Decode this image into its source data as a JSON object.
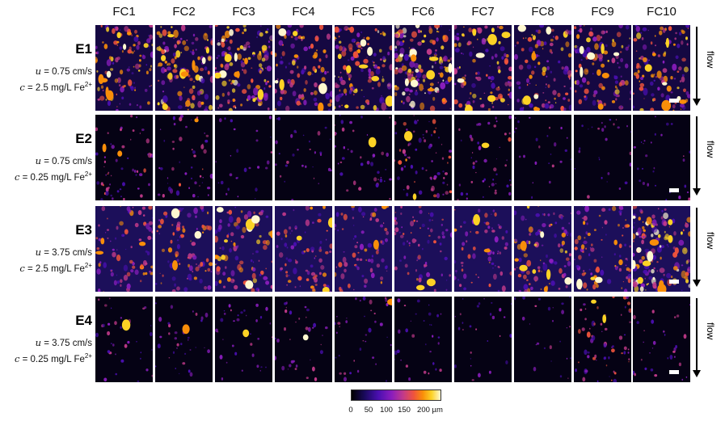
{
  "columns": [
    "FC1",
    "FC2",
    "FC3",
    "FC4",
    "FC5",
    "FC6",
    "FC7",
    "FC8",
    "FC9",
    "FC10"
  ],
  "rows": [
    {
      "id": "E1",
      "u_label": "u",
      "u_text": " = 0.75 cm/s",
      "c_label": "c",
      "c_text": " = 2.5 mg/L Fe",
      "c_sup": "2+",
      "levels": [
        0.6,
        0.7,
        0.75,
        0.55,
        0.7,
        0.8,
        0.6,
        0.55,
        0.6,
        0.6
      ]
    },
    {
      "id": "E2",
      "u_label": "u",
      "u_text": " = 0.75 cm/s",
      "c_label": "c",
      "c_text": " = 0.25 mg/L Fe",
      "c_sup": "2+",
      "levels": [
        0.25,
        0.2,
        0.05,
        0.08,
        0.15,
        0.35,
        0.2,
        0.03,
        0.05,
        0.06
      ]
    },
    {
      "id": "E3",
      "u_label": "u",
      "u_text": " = 3.75 cm/s",
      "c_label": "c",
      "c_text": " = 2.5 mg/L Fe",
      "c_sup": "2+",
      "levels": [
        0.45,
        0.45,
        0.55,
        0.45,
        0.4,
        0.35,
        0.35,
        0.55,
        0.5,
        0.8
      ]
    },
    {
      "id": "E4",
      "u_label": "u",
      "u_text": " = 3.75 cm/s",
      "c_label": "c",
      "c_text": " = 0.25 mg/L Fe",
      "c_sup": "2+",
      "levels": [
        0.1,
        0.1,
        0.1,
        0.1,
        0.12,
        0.08,
        0.06,
        0.04,
        0.3,
        0.08
      ]
    }
  ],
  "flow_label": "flow",
  "colorbar": {
    "ticks": [
      "0",
      "50",
      "100",
      "150",
      "200 µm"
    ],
    "colors": [
      "#000000",
      "#1a0a5e",
      "#4a0fb0",
      "#8a1dbd",
      "#c23a8a",
      "#f0543c",
      "#f98e09",
      "#fcd225",
      "#fff8d0"
    ]
  }
}
